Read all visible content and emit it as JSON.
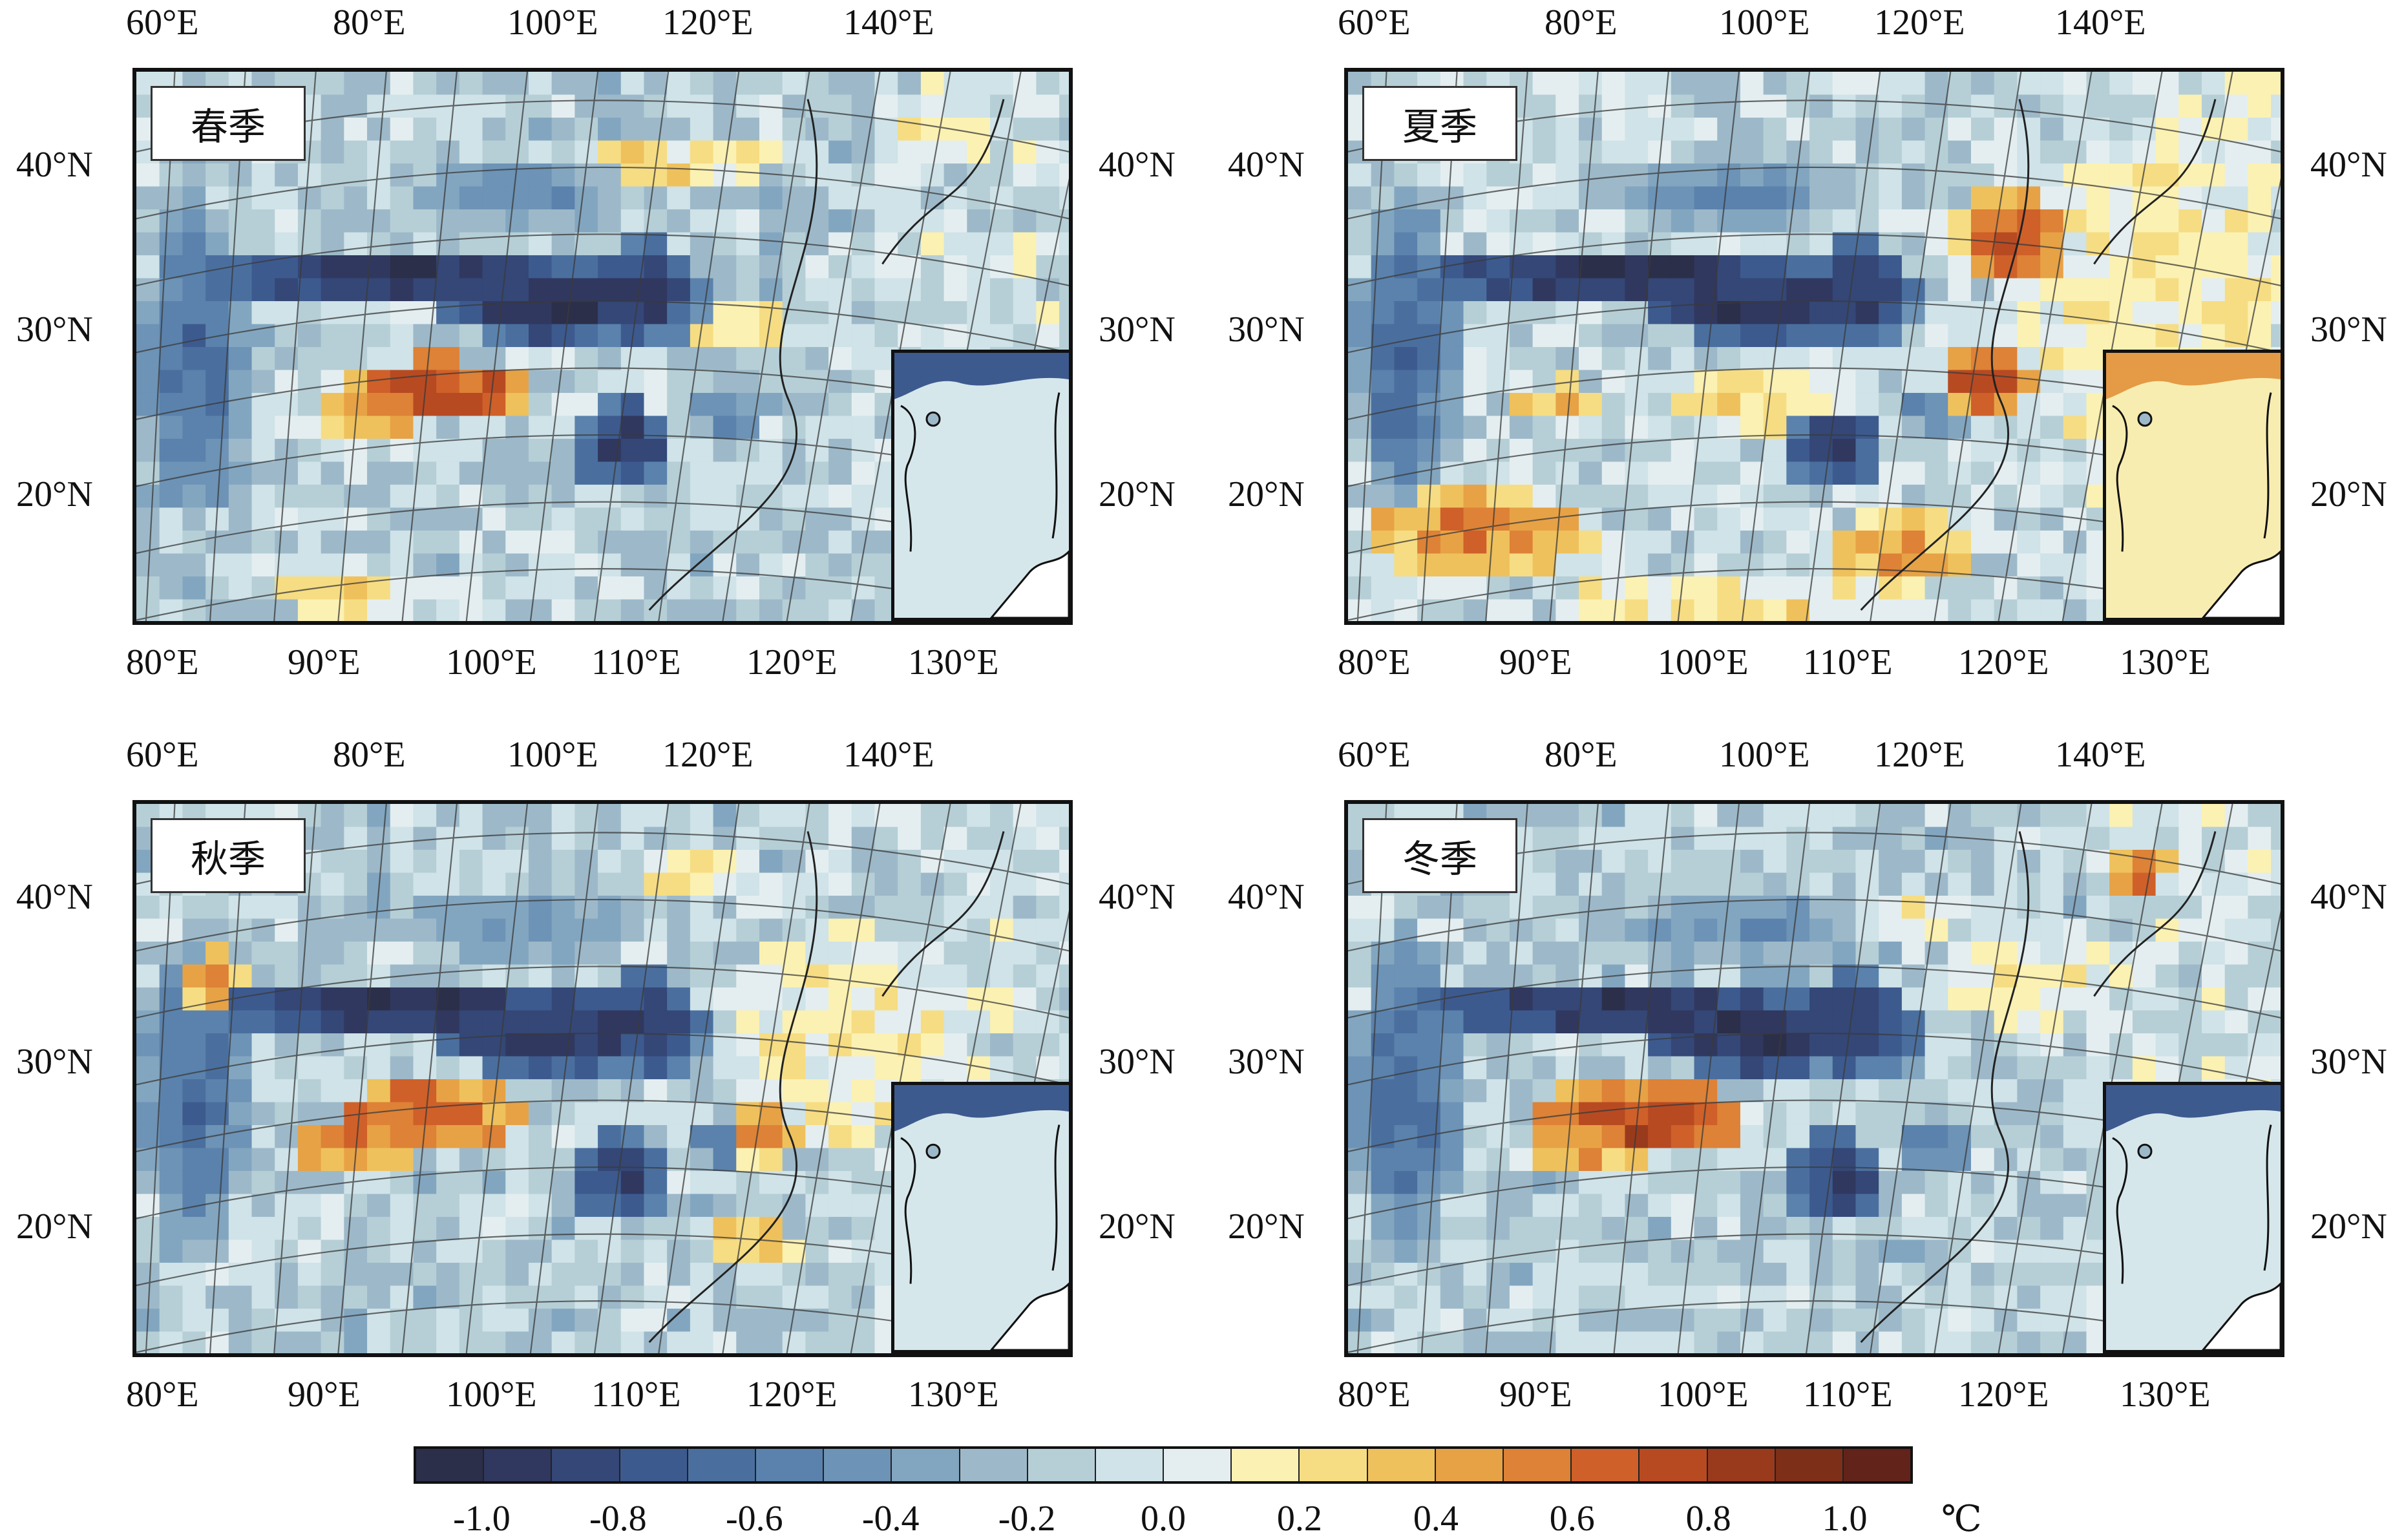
{
  "panels": [
    {
      "id": "spring",
      "label": "春季"
    },
    {
      "id": "summer",
      "label": "夏季"
    },
    {
      "id": "autumn",
      "label": "秋季"
    },
    {
      "id": "winter",
      "label": "冬季"
    }
  ],
  "axes": {
    "top_lon": [
      "60°E",
      "80°E",
      "100°E",
      "120°E",
      "140°E"
    ],
    "bottom_lon": [
      "80°E",
      "90°E",
      "100°E",
      "110°E",
      "120°E",
      "130°E"
    ],
    "lat": [
      "40°N",
      "30°N",
      "20°N"
    ]
  },
  "colorbar": {
    "ticks": [
      "-1.0",
      "-0.8",
      "-0.6",
      "-0.4",
      "-0.2",
      "0.0",
      "0.2",
      "0.4",
      "0.6",
      "0.8",
      "1.0"
    ],
    "unit": "℃",
    "colors": [
      "#2b2f4a",
      "#30385f",
      "#344777",
      "#3d5a8f",
      "#4a6f9f",
      "#5a82ac",
      "#6d93b6",
      "#83a6c0",
      "#9db9c9",
      "#b6cfd6",
      "#cfe3e8",
      "#e4eef0",
      "#fbf1b2",
      "#f6dd83",
      "#efc15c",
      "#e7a246",
      "#dd8236",
      "#cf6029",
      "#b84a22",
      "#9a3a1d",
      "#7e2f17",
      "#62231a"
    ]
  }
}
